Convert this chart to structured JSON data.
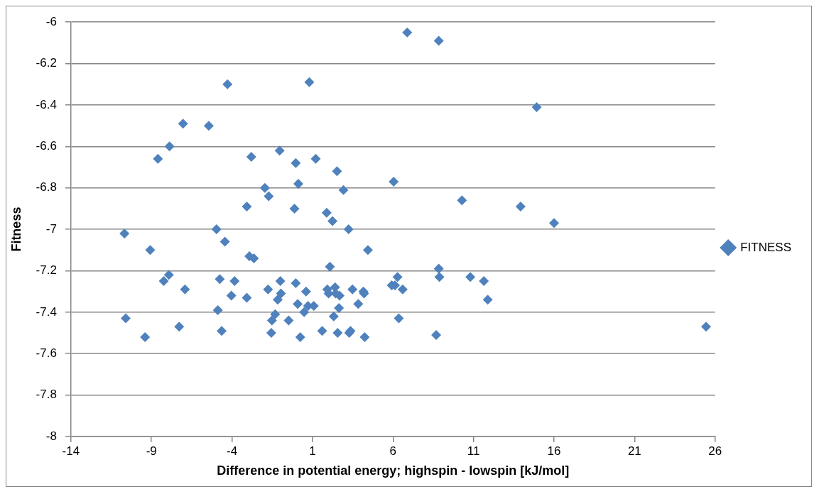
{
  "chart_data": {
    "type": "scatter",
    "xlabel": "Difference in potential energy; highspin - lowspin [kJ/mol]",
    "ylabel": "Fitness",
    "xlim": [
      -14,
      26
    ],
    "xticks": [
      -14,
      -9,
      -4,
      1,
      6,
      11,
      16,
      21,
      26
    ],
    "ylim": [
      -8,
      -6
    ],
    "yticks": [
      -8,
      -7.8,
      -7.6,
      -7.4,
      -7.2,
      -7,
      -6.8,
      -6.6,
      -6.4,
      -6.2,
      -6
    ],
    "grid": "y",
    "legend": "right",
    "marker": "diamond",
    "series": [
      {
        "name": "FITNESS",
        "color": "#4f81bd",
        "x": [
          6.88,
          8.84,
          -4.28,
          0.8,
          14.92,
          -7.04,
          -5.44,
          -7.88,
          -8.6,
          -2.8,
          -1.04,
          -0.04,
          1.2,
          2.52,
          0.12,
          6.04,
          -1.96,
          -1.72,
          2.92,
          10.28,
          13.92,
          -3.08,
          -0.12,
          1.88,
          2.24,
          16.0,
          -10.68,
          -4.96,
          3.24,
          -4.44,
          -9.08,
          4.44,
          -2.92,
          -2.64,
          2.08,
          -7.92,
          -8.24,
          -6.92,
          -4.76,
          -3.84,
          -4.04,
          -3.08,
          -10.6,
          -9.4,
          -7.28,
          -4.88,
          -4.64,
          -1.76,
          -1.0,
          -0.96,
          -1.16,
          -0.04,
          0.6,
          0.08,
          0.48,
          0.72,
          1.08,
          -1.32,
          -1.52,
          -1.56,
          -0.48,
          0.24,
          1.6,
          1.92,
          2.0,
          2.4,
          2.44,
          2.68,
          2.64,
          2.32,
          2.56,
          3.28,
          3.36,
          3.48,
          4.16,
          4.2,
          3.84,
          4.24,
          5.92,
          6.28,
          6.12,
          6.6,
          6.36,
          8.84,
          8.88,
          10.8,
          11.64,
          11.88,
          8.68,
          25.44
        ],
        "values": [
          -6.05,
          -6.09,
          -6.3,
          -6.29,
          -6.41,
          -6.49,
          -6.5,
          -6.6,
          -6.66,
          -6.65,
          -6.62,
          -6.68,
          -6.66,
          -6.72,
          -6.78,
          -6.77,
          -6.8,
          -6.84,
          -6.81,
          -6.86,
          -6.89,
          -6.89,
          -6.9,
          -6.92,
          -6.96,
          -6.97,
          -7.02,
          -7.0,
          -7.0,
          -7.06,
          -7.1,
          -7.1,
          -7.13,
          -7.14,
          -7.18,
          -7.22,
          -7.25,
          -7.29,
          -7.24,
          -7.25,
          -7.32,
          -7.33,
          -7.43,
          -7.52,
          -7.47,
          -7.39,
          -7.49,
          -7.29,
          -7.25,
          -7.31,
          -7.34,
          -7.26,
          -7.3,
          -7.36,
          -7.4,
          -7.37,
          -7.37,
          -7.41,
          -7.44,
          -7.5,
          -7.44,
          -7.52,
          -7.49,
          -7.29,
          -7.31,
          -7.28,
          -7.31,
          -7.32,
          -7.38,
          -7.42,
          -7.5,
          -7.5,
          -7.49,
          -7.29,
          -7.3,
          -7.31,
          -7.36,
          -7.52,
          -7.27,
          -7.23,
          -7.27,
          -7.29,
          -7.43,
          -7.19,
          -7.23,
          -7.23,
          -7.25,
          -7.34,
          -7.51,
          -7.47
        ]
      }
    ]
  }
}
